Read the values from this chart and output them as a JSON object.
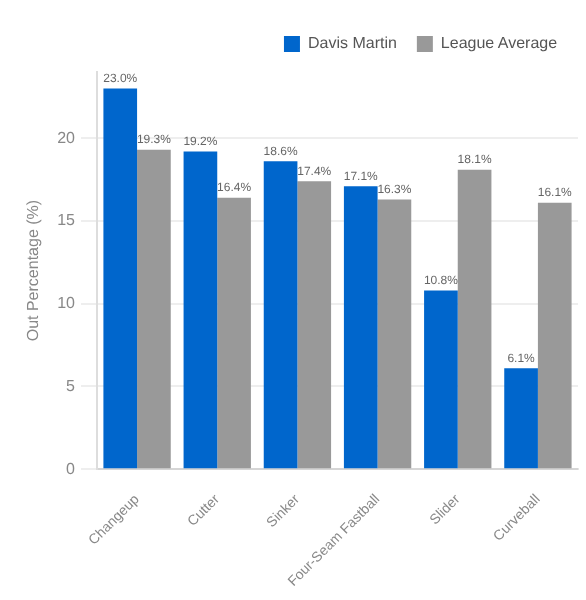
{
  "chart_data": {
    "type": "bar",
    "ylabel": "Out Percentage (%)",
    "categories": [
      "Changeup",
      "Cutter",
      "Sinker",
      "Four-Seam Fastball",
      "Slider",
      "Curveball"
    ],
    "series": [
      {
        "name": "Davis Martin",
        "color": "#0066cc",
        "values": [
          23.0,
          19.2,
          18.6,
          17.1,
          10.8,
          6.1
        ],
        "value_labels": [
          "23.0%",
          "19.2%",
          "18.6%",
          "17.1%",
          "10.8%",
          "6.1%"
        ]
      },
      {
        "name": "League Average",
        "color": "#999999",
        "values": [
          19.3,
          16.4,
          17.4,
          16.3,
          18.1,
          16.1
        ],
        "value_labels": [
          "19.3%",
          "16.4%",
          "17.4%",
          "16.3%",
          "18.1%",
          "16.1%"
        ]
      }
    ],
    "ylim": [
      0,
      24
    ],
    "yticks": [
      0,
      5,
      10,
      15,
      20
    ],
    "grid": "y",
    "legend": "top right"
  }
}
